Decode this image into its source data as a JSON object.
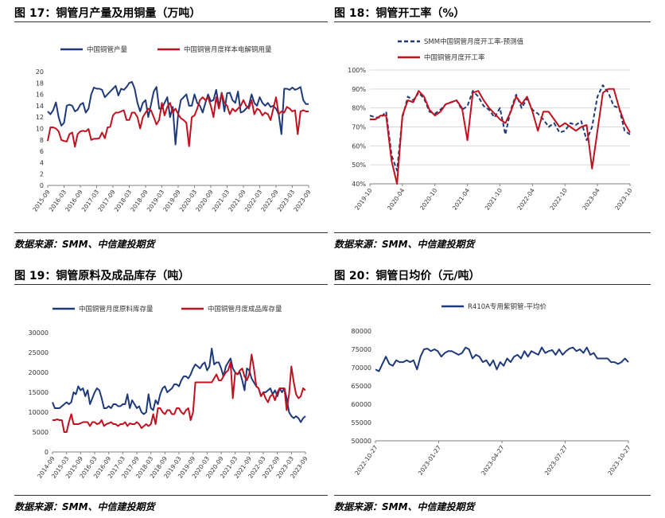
{
  "source_text": "数据来源：SMM、中信建投期货",
  "colors": {
    "navy": "#1f3a7a",
    "red": "#c0111f",
    "grid": "#d9d9d9",
    "axis": "#808080"
  },
  "chart_data": [
    {
      "id": "fig17",
      "title": "图 17：铜管月产量及用铜量（万吨）",
      "type": "line",
      "yticks": [
        "0",
        "2",
        "4",
        "6",
        "8",
        "10",
        "12",
        "14",
        "16",
        "18",
        "20"
      ],
      "ylim": [
        0,
        20
      ],
      "x_ticklabels": [
        "2015-09",
        "2016-03",
        "2016-09",
        "2017-03",
        "2017-09",
        "2018-03",
        "2018-09",
        "2019-03",
        "2019-09",
        "2020-03",
        "2020-09",
        "2021-03",
        "2021-09",
        "2022-03",
        "2022-09",
        "2023-03",
        "2023-09"
      ],
      "x_range": [
        0,
        96
      ],
      "series": [
        {
          "name": "中国铜管产量",
          "color": "#1f3a7a",
          "style": "solid",
          "values": [
            13.0,
            12.5,
            13.2,
            14.6,
            12.0,
            10.5,
            11.0,
            14.0,
            14.2,
            14.0,
            13.0,
            13.3,
            14.2,
            14.5,
            12.8,
            13.5,
            16.0,
            17.2,
            17.0,
            17.0,
            16.8,
            15.5,
            16.0,
            16.5,
            17.0,
            17.5,
            15.8,
            17.0,
            16.8,
            17.3,
            18.0,
            18.2,
            17.0,
            14.5,
            13.0,
            14.5,
            15.0,
            12.0,
            14.2,
            16.5,
            17.3,
            13.5,
            13.5,
            14.5,
            15.5,
            12.0,
            13.8,
            7.2,
            12.5,
            15.0,
            15.5,
            16.0,
            14.0,
            14.0,
            16.0,
            14.5,
            14.0,
            12.8,
            14.5,
            16.0,
            14.8,
            15.0,
            16.8,
            13.8,
            16.3,
            13.0,
            16.2,
            16.3,
            15.0,
            14.5,
            16.5,
            12.8,
            13.0,
            13.5,
            14.0,
            16.0,
            14.5,
            14.0,
            15.5,
            14.5,
            14.0,
            14.5,
            13.8,
            14.0,
            13.5,
            12.5,
            9.0,
            17.0,
            17.0,
            16.8,
            17.2,
            16.8,
            17.0,
            17.3,
            15.0,
            14.3,
            14.3
          ]
        },
        {
          "name": "中国铜管月度样本电解铜用量",
          "color": "#c0111f",
          "style": "solid",
          "values": [
            7.8,
            10.2,
            10.2,
            10.0,
            9.5,
            8.0,
            7.8,
            7.7,
            9.0,
            9.3,
            6.8,
            9.0,
            9.5,
            9.6,
            9.5,
            9.9,
            8.0,
            8.2,
            8.2,
            8.3,
            9.3,
            8.3,
            10.2,
            10.3,
            12.3,
            12.8,
            12.8,
            13.0,
            13.2,
            11.5,
            11.5,
            12.8,
            12.8,
            12.0,
            10.0,
            12.0,
            12.8,
            13.5,
            13.2,
            12.0,
            10.7,
            11.5,
            14.5,
            12.3,
            13.8,
            14.5,
            12.8,
            13.5,
            12.5,
            11.8,
            11.5,
            11.0,
            6.9,
            12.0,
            12.3,
            13.5,
            15.0,
            15.5,
            15.0,
            15.5,
            14.0,
            12.0,
            15.5,
            13.5,
            16.2,
            14.5,
            14.0,
            12.5,
            13.5,
            13.0,
            13.5,
            14.0,
            15.0,
            14.0,
            13.5,
            15.0,
            12.5,
            13.5,
            13.2,
            12.3,
            12.8,
            12.5,
            11.5,
            13.5,
            15.5,
            12.5,
            13.0,
            12.8,
            13.8,
            13.5,
            13.0,
            13.2,
            9.0,
            13.0,
            13.2,
            13.0,
            13.0
          ]
        }
      ]
    },
    {
      "id": "fig18",
      "title": "图 18：铜管开工率（%）",
      "type": "line",
      "yticks": [
        "40%",
        "50%",
        "60%",
        "70%",
        "80%",
        "90%",
        "100%"
      ],
      "ylim": [
        40,
        100
      ],
      "x_ticklabels": [
        "2019-10",
        "2020-04",
        "2020-10",
        "2021-04",
        "2021-10",
        "2022-04",
        "2022-10",
        "2023-04",
        "2023-10"
      ],
      "x_range": [
        0,
        48
      ],
      "series": [
        {
          "name": "SMM中国铜管月度开工率-预测值",
          "color": "#1f3a7a",
          "style": "dashed",
          "values": [
            76,
            75,
            75,
            78,
            55,
            47,
            75,
            86,
            84,
            88,
            85,
            78,
            77,
            79,
            82,
            83,
            84,
            79,
            81,
            89,
            86,
            81,
            79,
            75,
            80,
            66,
            79,
            87,
            80,
            85,
            79,
            77,
            74,
            70,
            72,
            67,
            68,
            72,
            71,
            73,
            63,
            70,
            86,
            92,
            88,
            81,
            80,
            68,
            66
          ]
        },
        {
          "name": "中国铜管月度开工率",
          "color": "#c0111f",
          "style": "solid",
          "values": [
            74,
            74,
            76,
            76,
            52,
            40,
            76,
            84,
            83,
            89,
            86,
            79,
            76,
            78,
            82,
            83,
            84,
            80,
            63,
            88,
            89,
            84,
            80,
            77,
            74,
            72,
            78,
            86,
            82,
            86,
            78,
            68,
            78,
            78,
            74,
            70,
            72,
            70,
            68,
            70,
            71,
            48,
            68,
            88,
            90,
            90,
            80,
            72,
            67
          ]
        }
      ]
    },
    {
      "id": "fig19",
      "title": "图 19：铜管原料及成品库存（吨）",
      "type": "line",
      "yticks": [
        "0",
        "5000",
        "10000",
        "15000",
        "20000",
        "25000",
        "30000"
      ],
      "ylim": [
        0,
        30000
      ],
      "x_ticklabels": [
        "2014-09",
        "2015-03",
        "2015-09",
        "2016-03",
        "2016-09",
        "2017-03",
        "2017-09",
        "2018-03",
        "2018-09",
        "2019-03",
        "2019-09",
        "2020-03",
        "2020-09",
        "2021-03",
        "2021-09",
        "2022-03",
        "2022-09",
        "2023-03",
        "2023-09"
      ],
      "x_range": [
        0,
        108
      ],
      "series": [
        {
          "name": "中国铜管月度原料库存量",
          "color": "#1f3a7a",
          "style": "solid",
          "values": [
            12500,
            11000,
            11000,
            11000,
            11500,
            12000,
            12500,
            12000,
            12500,
            15000,
            14500,
            16500,
            15500,
            16000,
            14000,
            15500,
            12000,
            13500,
            15000,
            16000,
            15500,
            13500,
            11000,
            11000,
            11500,
            11000,
            12000,
            12000,
            11500,
            11500,
            12000,
            12000,
            14500,
            11000,
            13000,
            12000,
            11000,
            11500,
            10000,
            9500,
            10000,
            14500,
            11000,
            10500,
            13000,
            12000,
            14500,
            16000,
            16500,
            15000,
            15500,
            16000,
            17000,
            17000,
            16500,
            18000,
            19000,
            19000,
            18500,
            19500,
            21000,
            22000,
            21500,
            21000,
            22000,
            22500,
            20500,
            21500,
            26000,
            22000,
            22500,
            22500,
            21000,
            19000,
            21500,
            22500,
            23500,
            21000,
            20000,
            19500,
            20000,
            18000,
            15500,
            21000,
            20500,
            18500,
            17500,
            16500,
            16000,
            14000,
            15000,
            15000,
            15500,
            16000,
            14500,
            15500,
            14000,
            16000,
            15000,
            16000,
            13500,
            10000,
            9000,
            8500,
            9000,
            8500,
            7500,
            8500,
            9000
          ]
        },
        {
          "name": "中国铜管月度成品库存量",
          "color": "#c0111f",
          "style": "solid",
          "values": [
            8000,
            8000,
            8200,
            8000,
            8000,
            5000,
            5000,
            7500,
            9500,
            7000,
            7000,
            7000,
            7200,
            7500,
            7500,
            7500,
            6500,
            7500,
            7500,
            7000,
            7200,
            8000,
            6500,
            7000,
            7200,
            7500,
            7000,
            7000,
            6500,
            7000,
            7000,
            7500,
            6500,
            7200,
            7000,
            7000,
            7500,
            7000,
            6000,
            6500,
            7000,
            6500,
            7000,
            9500,
            7000,
            11000,
            11000,
            10000,
            9500,
            10500,
            10500,
            9500,
            9500,
            11000,
            11000,
            10000,
            9500,
            10500,
            11000,
            8000,
            10000,
            17500,
            17500,
            17500,
            17500,
            17500,
            17500,
            17500,
            17500,
            18500,
            19500,
            18000,
            18000,
            19000,
            20000,
            20500,
            22500,
            13500,
            20000,
            19500,
            20500,
            21000,
            19000,
            18000,
            19500,
            24500,
            21000,
            16500,
            16000,
            14000,
            15000,
            13500,
            12500,
            14000,
            14500,
            13000,
            15000,
            16000,
            16000,
            16000,
            10500,
            14500,
            21500,
            17500,
            14500,
            13500,
            14000,
            16000,
            15500
          ]
        }
      ]
    },
    {
      "id": "fig20",
      "title": "图 20：铜管日均价（元/吨）",
      "type": "line",
      "yticks": [
        "50000",
        "55000",
        "60000",
        "65000",
        "70000",
        "75000",
        "80000"
      ],
      "ylim": [
        50000,
        80000
      ],
      "x_ticklabels": [
        "2022-10-27",
        "2023-01-27",
        "2023-04-27",
        "2023-07-27",
        "2023-10-27"
      ],
      "x_range": [
        0,
        365
      ],
      "series": [
        {
          "name": "R410A专用紫铜管-平均价",
          "color": "#1f3a7a",
          "style": "solid",
          "x": [
            0,
            5,
            10,
            15,
            20,
            25,
            30,
            35,
            40,
            45,
            50,
            55,
            60,
            65,
            70,
            75,
            80,
            85,
            90,
            95,
            100,
            105,
            110,
            115,
            120,
            125,
            130,
            135,
            140,
            145,
            150,
            155,
            160,
            165,
            170,
            175,
            180,
            185,
            190,
            195,
            200,
            205,
            210,
            215,
            220,
            225,
            230,
            235,
            240,
            245,
            250,
            255,
            260,
            265,
            270,
            275,
            280,
            285,
            290,
            295,
            300,
            305,
            310,
            315,
            320,
            325,
            330,
            335,
            340,
            345,
            350,
            355,
            360,
            365
          ],
          "values": [
            69500,
            69000,
            71000,
            73000,
            71000,
            70500,
            72000,
            71500,
            71500,
            72000,
            71500,
            72000,
            69500,
            73000,
            75000,
            75200,
            74500,
            75000,
            74500,
            73000,
            74000,
            74500,
            74500,
            74000,
            73500,
            74000,
            75500,
            75000,
            72500,
            73500,
            73000,
            71500,
            72000,
            70500,
            72000,
            69500,
            71500,
            70500,
            72500,
            71500,
            73000,
            73500,
            72500,
            74500,
            73000,
            74500,
            74000,
            73500,
            75500,
            74000,
            74500,
            74800,
            73500,
            75000,
            73500,
            74500,
            75200,
            75500,
            74500,
            75000,
            74000,
            75500,
            73500,
            74000,
            72500,
            72500,
            72500,
            72500,
            71500,
            71500,
            71000,
            71500,
            72500,
            71500
          ]
        }
      ]
    }
  ]
}
